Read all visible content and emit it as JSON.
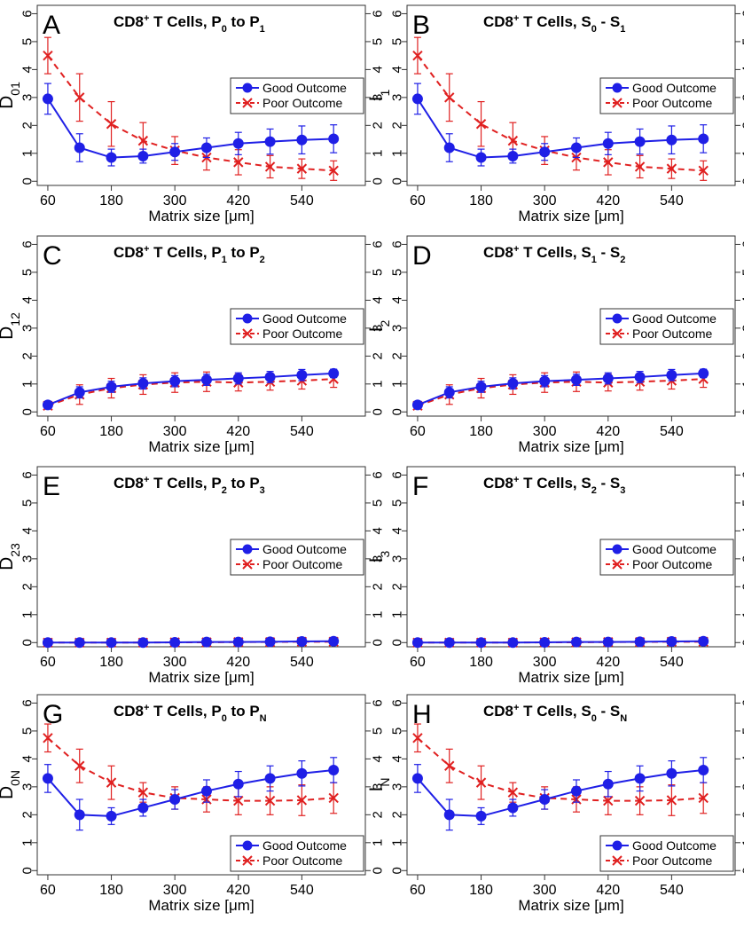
{
  "chart_data": [
    {
      "type": "line",
      "panel_label": "A",
      "title_parts": {
        "main": "CD8",
        "sup": "+",
        "mid": " T Cells, P",
        "sub1": "0",
        "mid2": " to P",
        "sub2": "1"
      },
      "ylabel": {
        "main": "D",
        "sub": "01"
      },
      "xlabel": "Matrix size [μm]",
      "xticks": [
        "60",
        "180",
        "300",
        "420",
        "540"
      ],
      "yticks": [
        "0",
        "1",
        "2",
        "3",
        "4",
        "5",
        "6"
      ],
      "xlim": [
        40,
        660
      ],
      "ylim": [
        -0.15,
        6.3
      ],
      "x": [
        60,
        120,
        180,
        240,
        300,
        360,
        420,
        480,
        540,
        600
      ],
      "series": [
        {
          "name": "Good Outcome",
          "values": [
            2.95,
            1.2,
            0.85,
            0.9,
            1.05,
            1.2,
            1.35,
            1.42,
            1.48,
            1.52
          ],
          "err": [
            0.55,
            0.5,
            0.3,
            0.25,
            0.3,
            0.35,
            0.4,
            0.45,
            0.5,
            0.5
          ]
        },
        {
          "name": "Poor Outcome",
          "values": [
            4.5,
            3.0,
            2.05,
            1.45,
            1.1,
            0.85,
            0.68,
            0.52,
            0.45,
            0.38
          ],
          "err": [
            0.65,
            0.85,
            0.8,
            0.65,
            0.5,
            0.45,
            0.45,
            0.4,
            0.35,
            0.35
          ]
        }
      ],
      "legend": [
        "Good Outcome",
        "Poor Outcome"
      ],
      "legend_position": "right"
    },
    {
      "type": "line",
      "panel_label": "B",
      "title_parts": {
        "main": "CD8",
        "sup": "+",
        "mid": " T Cells, S",
        "sub1": "0",
        "mid2": " - S",
        "sub2": "1"
      },
      "ylabel": {
        "main": "I",
        "sub": "1"
      },
      "xlabel": "Matrix size [μm]",
      "xticks": [
        "60",
        "180",
        "300",
        "420",
        "540"
      ],
      "yticks": [
        "0",
        "1",
        "2",
        "3",
        "4",
        "5",
        "6"
      ],
      "xlim": [
        40,
        660
      ],
      "ylim": [
        -0.15,
        6.3
      ],
      "x": [
        60,
        120,
        180,
        240,
        300,
        360,
        420,
        480,
        540,
        600
      ],
      "series": [
        {
          "name": "Good Outcome",
          "values": [
            2.95,
            1.2,
            0.85,
            0.9,
            1.05,
            1.2,
            1.35,
            1.42,
            1.48,
            1.52
          ],
          "err": [
            0.55,
            0.5,
            0.3,
            0.25,
            0.3,
            0.35,
            0.4,
            0.45,
            0.5,
            0.5
          ]
        },
        {
          "name": "Poor Outcome",
          "values": [
            4.5,
            3.0,
            2.05,
            1.45,
            1.1,
            0.85,
            0.68,
            0.52,
            0.45,
            0.38
          ],
          "err": [
            0.65,
            0.85,
            0.8,
            0.65,
            0.5,
            0.45,
            0.45,
            0.4,
            0.35,
            0.35
          ]
        }
      ],
      "legend": [
        "Good Outcome",
        "Poor Outcome"
      ],
      "legend_position": "right"
    },
    {
      "type": "line",
      "panel_label": "C",
      "title_parts": {
        "main": "CD8",
        "sup": "+",
        "mid": " T Cells, P",
        "sub1": "1",
        "mid2": " to P",
        "sub2": "2"
      },
      "ylabel": {
        "main": "D",
        "sub": "12"
      },
      "xlabel": "Matrix size [μm]",
      "xticks": [
        "60",
        "180",
        "300",
        "420",
        "540"
      ],
      "yticks": [
        "0",
        "1",
        "2",
        "3",
        "4",
        "5",
        "6"
      ],
      "xlim": [
        40,
        660
      ],
      "ylim": [
        -0.15,
        6.3
      ],
      "x": [
        60,
        120,
        180,
        240,
        300,
        360,
        420,
        480,
        540,
        600
      ],
      "series": [
        {
          "name": "Good Outcome",
          "values": [
            0.25,
            0.7,
            0.9,
            1.02,
            1.1,
            1.15,
            1.2,
            1.25,
            1.32,
            1.38
          ],
          "err": [
            0.1,
            0.2,
            0.2,
            0.2,
            0.2,
            0.2,
            0.2,
            0.2,
            0.2,
            0.15
          ]
        },
        {
          "name": "Poor Outcome",
          "values": [
            0.22,
            0.62,
            0.85,
            0.98,
            1.05,
            1.08,
            1.05,
            1.08,
            1.12,
            1.18
          ],
          "err": [
            0.1,
            0.35,
            0.35,
            0.35,
            0.35,
            0.35,
            0.3,
            0.3,
            0.3,
            0.3
          ]
        }
      ],
      "legend": [
        "Good Outcome",
        "Poor Outcome"
      ],
      "legend_position": "right"
    },
    {
      "type": "line",
      "panel_label": "D",
      "title_parts": {
        "main": "CD8",
        "sup": "+",
        "mid": " T Cells, S",
        "sub1": "1",
        "mid2": " - S",
        "sub2": "2"
      },
      "ylabel": {
        "main": "I",
        "sub": "2"
      },
      "xlabel": "Matrix size [μm]",
      "xticks": [
        "60",
        "180",
        "300",
        "420",
        "540"
      ],
      "yticks": [
        "0",
        "1",
        "2",
        "3",
        "4",
        "5",
        "6"
      ],
      "xlim": [
        40,
        660
      ],
      "ylim": [
        -0.15,
        6.3
      ],
      "x": [
        60,
        120,
        180,
        240,
        300,
        360,
        420,
        480,
        540,
        600
      ],
      "series": [
        {
          "name": "Good Outcome",
          "values": [
            0.25,
            0.7,
            0.9,
            1.02,
            1.1,
            1.15,
            1.2,
            1.25,
            1.32,
            1.38
          ],
          "err": [
            0.1,
            0.2,
            0.2,
            0.2,
            0.2,
            0.2,
            0.2,
            0.2,
            0.2,
            0.15
          ]
        },
        {
          "name": "Poor Outcome",
          "values": [
            0.22,
            0.62,
            0.85,
            0.98,
            1.05,
            1.08,
            1.05,
            1.08,
            1.12,
            1.18
          ],
          "err": [
            0.1,
            0.35,
            0.35,
            0.35,
            0.35,
            0.35,
            0.3,
            0.3,
            0.3,
            0.3
          ]
        }
      ],
      "legend": [
        "Good Outcome",
        "Poor Outcome"
      ],
      "legend_position": "right"
    },
    {
      "type": "line",
      "panel_label": "E",
      "title_parts": {
        "main": "CD8",
        "sup": "+",
        "mid": " T Cells, P",
        "sub1": "2",
        "mid2": " to P",
        "sub2": "3"
      },
      "ylabel": {
        "main": "D",
        "sub": "23"
      },
      "xlabel": "Matrix size [μm]",
      "xticks": [
        "60",
        "180",
        "300",
        "420",
        "540"
      ],
      "yticks": [
        "0",
        "1",
        "2",
        "3",
        "4",
        "5",
        "6"
      ],
      "xlim": [
        40,
        660
      ],
      "ylim": [
        -0.15,
        6.3
      ],
      "x": [
        60,
        120,
        180,
        240,
        300,
        360,
        420,
        480,
        540,
        600
      ],
      "series": [
        {
          "name": "Good Outcome",
          "values": [
            0.0,
            0.0,
            0.0,
            0.0,
            0.01,
            0.02,
            0.02,
            0.03,
            0.04,
            0.05
          ],
          "err": [
            0.03,
            0.03,
            0.03,
            0.03,
            0.03,
            0.03,
            0.03,
            0.03,
            0.03,
            0.03
          ]
        },
        {
          "name": "Poor Outcome",
          "values": [
            0.0,
            0.0,
            0.0,
            0.0,
            0.01,
            0.01,
            0.02,
            0.02,
            0.03,
            0.03
          ],
          "err": [
            0.03,
            0.03,
            0.03,
            0.03,
            0.03,
            0.03,
            0.03,
            0.03,
            0.03,
            0.03
          ]
        }
      ],
      "legend": [
        "Good Outcome",
        "Poor Outcome"
      ],
      "legend_position": "right"
    },
    {
      "type": "line",
      "panel_label": "F",
      "title_parts": {
        "main": "CD8",
        "sup": "+",
        "mid": " T Cells, S",
        "sub1": "2",
        "mid2": " - S",
        "sub2": "3"
      },
      "ylabel": {
        "main": "I",
        "sub": "3"
      },
      "xlabel": "Matrix size [μm]",
      "xticks": [
        "60",
        "180",
        "300",
        "420",
        "540"
      ],
      "yticks": [
        "0",
        "1",
        "2",
        "3",
        "4",
        "5",
        "6"
      ],
      "xlim": [
        40,
        660
      ],
      "ylim": [
        -0.15,
        6.3
      ],
      "x": [
        60,
        120,
        180,
        240,
        300,
        360,
        420,
        480,
        540,
        600
      ],
      "series": [
        {
          "name": "Good Outcome",
          "values": [
            0.0,
            0.0,
            0.0,
            0.0,
            0.01,
            0.02,
            0.02,
            0.03,
            0.04,
            0.05
          ],
          "err": [
            0.03,
            0.03,
            0.03,
            0.03,
            0.03,
            0.03,
            0.03,
            0.03,
            0.03,
            0.03
          ]
        },
        {
          "name": "Poor Outcome",
          "values": [
            0.0,
            0.0,
            0.0,
            0.0,
            0.01,
            0.01,
            0.02,
            0.02,
            0.03,
            0.03
          ],
          "err": [
            0.03,
            0.03,
            0.03,
            0.03,
            0.03,
            0.03,
            0.03,
            0.03,
            0.03,
            0.03
          ]
        }
      ],
      "legend": [
        "Good Outcome",
        "Poor Outcome"
      ],
      "legend_position": "right"
    },
    {
      "type": "line",
      "panel_label": "G",
      "title_parts": {
        "main": "CD8",
        "sup": "+",
        "mid": " T Cells, P",
        "sub1": "0",
        "mid2": " to P",
        "sub2": "N"
      },
      "ylabel": {
        "main": "D",
        "sub": "0N"
      },
      "xlabel": "Matrix size [μm]",
      "xticks": [
        "60",
        "180",
        "300",
        "420",
        "540"
      ],
      "yticks": [
        "0",
        "1",
        "2",
        "3",
        "4",
        "5",
        "6"
      ],
      "xlim": [
        40,
        660
      ],
      "ylim": [
        -0.15,
        6.3
      ],
      "x": [
        60,
        120,
        180,
        240,
        300,
        360,
        420,
        480,
        540,
        600
      ],
      "series": [
        {
          "name": "Good Outcome",
          "values": [
            3.3,
            2.0,
            1.95,
            2.25,
            2.55,
            2.85,
            3.1,
            3.3,
            3.48,
            3.6
          ],
          "err": [
            0.5,
            0.55,
            0.3,
            0.3,
            0.35,
            0.4,
            0.45,
            0.45,
            0.45,
            0.45
          ]
        },
        {
          "name": "Poor Outcome",
          "values": [
            4.75,
            3.75,
            3.15,
            2.8,
            2.6,
            2.55,
            2.5,
            2.5,
            2.52,
            2.6
          ],
          "err": [
            0.5,
            0.6,
            0.6,
            0.35,
            0.4,
            0.45,
            0.5,
            0.5,
            0.55,
            0.55
          ]
        }
      ],
      "legend": [
        "Good Outcome",
        "Poor Outcome"
      ],
      "legend_position": "bottom-right"
    },
    {
      "type": "line",
      "panel_label": "H",
      "title_parts": {
        "main": "CD8",
        "sup": "+",
        "mid": " T Cells, S",
        "sub1": "0",
        "mid2": " - S",
        "sub2": "N"
      },
      "ylabel": {
        "main": "I",
        "sub": "N"
      },
      "xlabel": "Matrix size [μm]",
      "xticks": [
        "60",
        "180",
        "300",
        "420",
        "540"
      ],
      "yticks": [
        "0",
        "1",
        "2",
        "3",
        "4",
        "5",
        "6"
      ],
      "xlim": [
        40,
        660
      ],
      "ylim": [
        -0.15,
        6.3
      ],
      "x": [
        60,
        120,
        180,
        240,
        300,
        360,
        420,
        480,
        540,
        600
      ],
      "series": [
        {
          "name": "Good Outcome",
          "values": [
            3.3,
            2.0,
            1.95,
            2.25,
            2.55,
            2.85,
            3.1,
            3.3,
            3.48,
            3.6
          ],
          "err": [
            0.5,
            0.55,
            0.3,
            0.3,
            0.35,
            0.4,
            0.45,
            0.45,
            0.45,
            0.45
          ]
        },
        {
          "name": "Poor Outcome",
          "values": [
            4.75,
            3.75,
            3.15,
            2.8,
            2.6,
            2.55,
            2.5,
            2.5,
            2.52,
            2.6
          ],
          "err": [
            0.5,
            0.6,
            0.6,
            0.35,
            0.4,
            0.45,
            0.5,
            0.5,
            0.55,
            0.55
          ]
        }
      ],
      "legend": [
        "Good Outcome",
        "Poor Outcome"
      ],
      "legend_position": "bottom-right"
    }
  ],
  "colors": {
    "good": "#1f1fe6",
    "poor": "#e02020",
    "axis": "#333333",
    "text": "#000000"
  }
}
